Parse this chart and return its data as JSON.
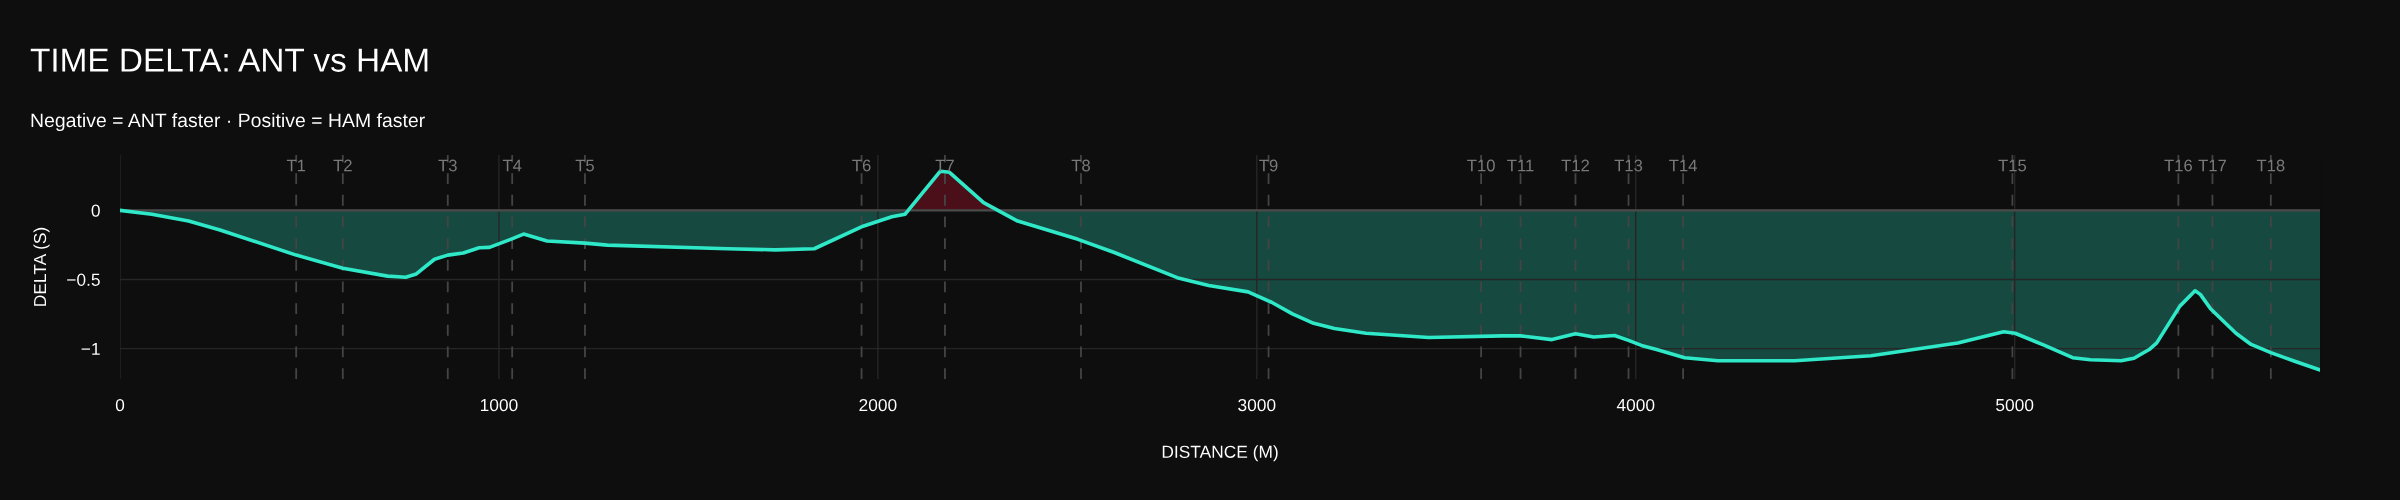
{
  "chart_data": {
    "type": "area",
    "title": "TIME DELTA: ANT vs HAM",
    "subtitle": "Negative = ANT faster · Positive = HAM faster",
    "xlabel": "DISTANCE (M)",
    "ylabel": "DELTA (S)",
    "xlim": [
      0,
      5806
    ],
    "ylim": [
      -1.22,
      0.4
    ],
    "xticks": [
      0,
      1000,
      2000,
      3000,
      4000,
      5000
    ],
    "yticks": [
      {
        "value": -1,
        "label": "−1"
      },
      {
        "value": -0.5,
        "label": "−0.5"
      },
      0
    ],
    "grid": true,
    "legend": false,
    "series": [
      {
        "color": "#2ee8c8",
        "x": [
          0,
          84,
          181,
          264,
          465,
          588,
          706,
          754,
          782,
          830,
          865,
          906,
          948,
          975,
          1031,
          1065,
          1127,
          1227,
          1286,
          1604,
          1729,
          1832,
          1961,
          2037,
          2072,
          2165,
          2189,
          2279,
          2369,
          2528,
          2624,
          2790,
          2873,
          2977,
          3039,
          3094,
          3150,
          3205,
          3288,
          3454,
          3647,
          3696,
          3779,
          3841,
          3889,
          3944,
          3981,
          4015,
          4055,
          4129,
          4217,
          4419,
          4621,
          4850,
          4971,
          5001,
          5079,
          5153,
          5200,
          5281,
          5315,
          5355,
          5375,
          5436,
          5476,
          5490,
          5517,
          5584,
          5624,
          5676,
          5739,
          5806
        ],
        "values": [
          0,
          -0.028,
          -0.077,
          -0.142,
          -0.324,
          -0.419,
          -0.476,
          -0.484,
          -0.46,
          -0.354,
          -0.324,
          -0.309,
          -0.271,
          -0.268,
          -0.21,
          -0.172,
          -0.222,
          -0.237,
          -0.252,
          -0.278,
          -0.286,
          -0.278,
          -0.115,
          -0.047,
          -0.028,
          0.283,
          0.275,
          0.055,
          -0.078,
          -0.21,
          -0.305,
          -0.487,
          -0.544,
          -0.59,
          -0.665,
          -0.749,
          -0.817,
          -0.855,
          -0.889,
          -0.92,
          -0.908,
          -0.908,
          -0.935,
          -0.893,
          -0.916,
          -0.905,
          -0.941,
          -0.977,
          -1.007,
          -1.066,
          -1.088,
          -1.088,
          -1.052,
          -0.959,
          -0.878,
          -0.889,
          -0.977,
          -1.066,
          -1.081,
          -1.088,
          -1.07,
          -1.007,
          -0.959,
          -0.693,
          -0.582,
          -0.608,
          -0.712,
          -0.889,
          -0.97,
          -1.029,
          -1.092,
          -1.155
        ]
      },
      {
        "color": "#4a0f18",
        "x": [
          2080,
          2165,
          2189,
          2279,
          2316
        ],
        "values": [
          0,
          0.283,
          0.275,
          0.055,
          0
        ]
      }
    ],
    "ref_lines": [
      {
        "axis": "y",
        "value": 0,
        "color": "#4a4a4a",
        "line_style": "solid"
      },
      {
        "axis": "x",
        "value": 465,
        "label": "T1",
        "color": "#444444",
        "line_style": "dashed"
      },
      {
        "axis": "x",
        "value": 588,
        "label": "T2",
        "color": "#444444",
        "line_style": "dashed"
      },
      {
        "axis": "x",
        "value": 865,
        "label": "T3",
        "color": "#444444",
        "line_style": "dashed"
      },
      {
        "axis": "x",
        "value": 1035,
        "label": "T4",
        "color": "#444444",
        "line_style": "dashed"
      },
      {
        "axis": "x",
        "value": 1227,
        "label": "T5",
        "color": "#444444",
        "line_style": "dashed"
      },
      {
        "axis": "x",
        "value": 1957,
        "label": "T6",
        "color": "#444444",
        "line_style": "dashed"
      },
      {
        "axis": "x",
        "value": 2177,
        "label": "T7",
        "color": "#444444",
        "line_style": "dashed"
      },
      {
        "axis": "x",
        "value": 2536,
        "label": "T8",
        "color": "#444444",
        "line_style": "dashed"
      },
      {
        "axis": "x",
        "value": 3031,
        "label": "T9",
        "color": "#444444",
        "line_style": "dashed"
      },
      {
        "axis": "x",
        "value": 3592,
        "label": "T10",
        "color": "#444444",
        "line_style": "dashed"
      },
      {
        "axis": "x",
        "value": 3696,
        "label": "T11",
        "color": "#444444",
        "line_style": "dashed"
      },
      {
        "axis": "x",
        "value": 3841,
        "label": "T12",
        "color": "#444444",
        "line_style": "dashed"
      },
      {
        "axis": "x",
        "value": 3981,
        "label": "T13",
        "color": "#444444",
        "line_style": "dashed"
      },
      {
        "axis": "x",
        "value": 4125,
        "label": "T14",
        "color": "#444444",
        "line_style": "dashed"
      },
      {
        "axis": "x",
        "value": 4994,
        "label": "T15",
        "color": "#444444",
        "line_style": "dashed"
      },
      {
        "axis": "x",
        "value": 5432,
        "label": "T16",
        "color": "#444444",
        "line_style": "dashed"
      },
      {
        "axis": "x",
        "value": 5522,
        "label": "T17",
        "color": "#444444",
        "line_style": "dashed"
      },
      {
        "axis": "x",
        "value": 5676,
        "label": "T18",
        "color": "#444444",
        "line_style": "dashed"
      }
    ]
  }
}
